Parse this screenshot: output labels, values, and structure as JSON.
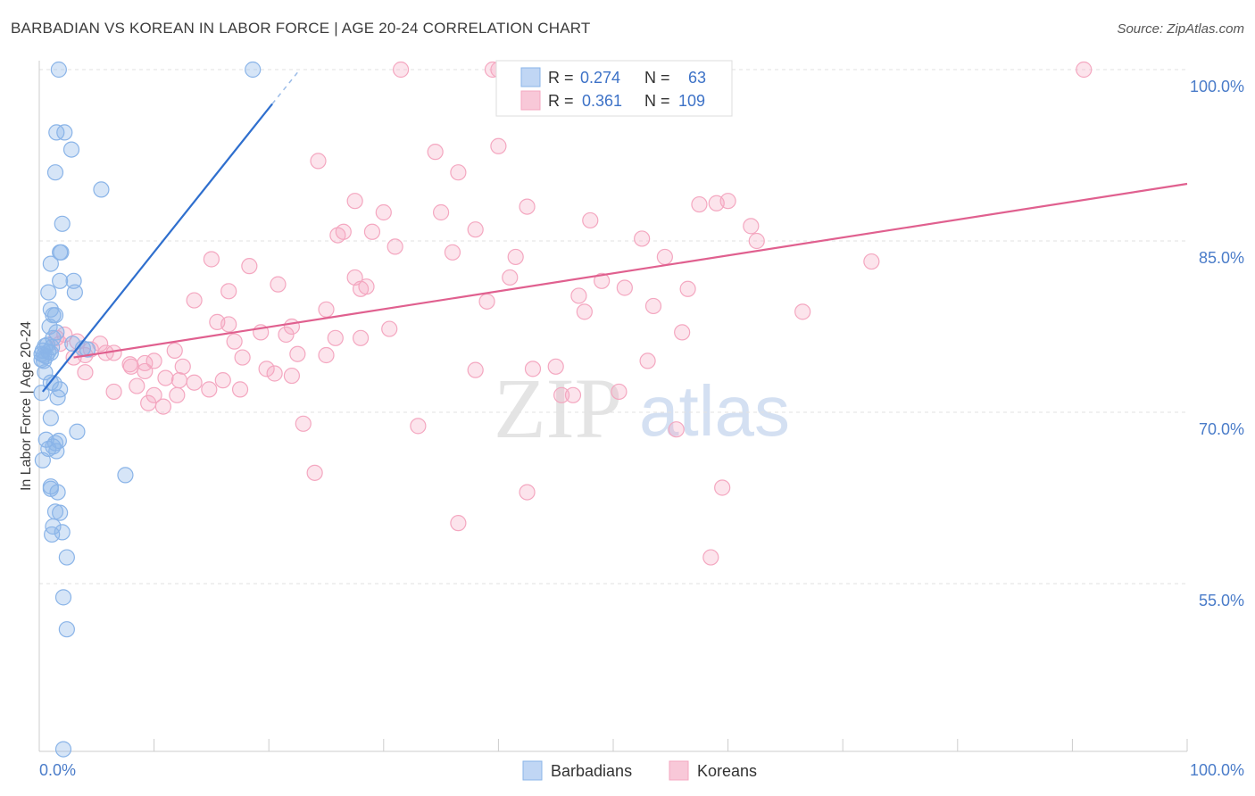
{
  "title": "BARBADIAN VS KOREAN IN LABOR FORCE | AGE 20-24 CORRELATION CHART",
  "source": "Source: ZipAtlas.com",
  "watermark": {
    "zip": "ZIP",
    "atlas": "atlas"
  },
  "chart_data": {
    "type": "scatter",
    "ylabel": "In Labor Force | Age 20-24",
    "xlabel": "",
    "xlim": [
      0,
      100
    ],
    "ylim": [
      40,
      102
    ],
    "x_tick_labels": [
      "0.0%",
      "100.0%"
    ],
    "y_ticks": [
      100,
      85,
      70,
      55
    ],
    "y_tick_labels": [
      "100.0%",
      "85.0%",
      "70.0%",
      "55.0%"
    ],
    "legend": {
      "placement": "top-center",
      "entries": [
        {
          "r_label": "R =",
          "r": "0.274",
          "n_label": "N =",
          "n": "63"
        },
        {
          "r_label": "R =",
          "r": "0.361",
          "n_label": "N =",
          "n": "109"
        }
      ]
    },
    "series": [
      {
        "name": "Barbadians",
        "color": "#8ab4e8",
        "line_color": "#2f6fce",
        "trend": {
          "x0": 0.3,
          "y0": 71.8,
          "x1": 20.3,
          "y1": 97.0,
          "dash_x1": 22.7,
          "dash_y1": 100.0
        },
        "points": [
          [
            1.7,
            100
          ],
          [
            18.6,
            100
          ],
          [
            1.5,
            94.5
          ],
          [
            2.2,
            94.5
          ],
          [
            2.8,
            93.0
          ],
          [
            1.4,
            91.0
          ],
          [
            5.4,
            89.5
          ],
          [
            2.0,
            86.5
          ],
          [
            1.8,
            84.0
          ],
          [
            1.9,
            84.0
          ],
          [
            1.0,
            83.0
          ],
          [
            1.8,
            81.5
          ],
          [
            3.0,
            81.5
          ],
          [
            3.1,
            80.5
          ],
          [
            0.8,
            80.5
          ],
          [
            1.0,
            79.0
          ],
          [
            1.2,
            78.5
          ],
          [
            1.4,
            78.5
          ],
          [
            0.9,
            77.5
          ],
          [
            1.5,
            77.0
          ],
          [
            1.2,
            76.5
          ],
          [
            2.9,
            76.0
          ],
          [
            0.5,
            75.8
          ],
          [
            1.1,
            75.7
          ],
          [
            4.2,
            75.5
          ],
          [
            0.3,
            75.4
          ],
          [
            0.8,
            75.3
          ],
          [
            1.0,
            75.2
          ],
          [
            0.2,
            75.1
          ],
          [
            0.4,
            75.0
          ],
          [
            0.6,
            74.9
          ],
          [
            0.2,
            74.6
          ],
          [
            0.4,
            74.5
          ],
          [
            3.8,
            75.6
          ],
          [
            0.5,
            73.5
          ],
          [
            1.0,
            72.6
          ],
          [
            1.3,
            72.5
          ],
          [
            1.8,
            72.0
          ],
          [
            0.2,
            71.7
          ],
          [
            1.6,
            71.3
          ],
          [
            1.0,
            69.5
          ],
          [
            3.3,
            68.3
          ],
          [
            0.6,
            67.6
          ],
          [
            1.7,
            67.5
          ],
          [
            1.4,
            67.3
          ],
          [
            1.2,
            67.0
          ],
          [
            0.8,
            66.8
          ],
          [
            1.5,
            66.6
          ],
          [
            0.3,
            65.8
          ],
          [
            7.5,
            64.5
          ],
          [
            1.0,
            63.5
          ],
          [
            1.0,
            63.3
          ],
          [
            1.6,
            63.0
          ],
          [
            1.4,
            61.3
          ],
          [
            1.8,
            61.2
          ],
          [
            1.2,
            60.0
          ],
          [
            1.1,
            59.3
          ],
          [
            2.0,
            59.5
          ],
          [
            2.4,
            57.3
          ],
          [
            2.1,
            53.8
          ],
          [
            2.4,
            51.0
          ],
          [
            2.1,
            40.5
          ],
          [
            0.7,
            75.9
          ]
        ]
      },
      {
        "name": "Koreans",
        "color": "#f4a7c0",
        "line_color": "#e0608f",
        "trend": {
          "x0": 3.0,
          "y0": 74.8,
          "x1": 100.0,
          "y1": 90.0
        },
        "points": [
          [
            31.5,
            100
          ],
          [
            39.5,
            100
          ],
          [
            40.0,
            100
          ],
          [
            40.5,
            100
          ],
          [
            41.0,
            100
          ],
          [
            91.0,
            100
          ],
          [
            40.0,
            93.3
          ],
          [
            34.5,
            92.8
          ],
          [
            24.3,
            92.0
          ],
          [
            36.5,
            91.0
          ],
          [
            27.5,
            88.5
          ],
          [
            42.5,
            88.0
          ],
          [
            57.5,
            88.2
          ],
          [
            59.0,
            88.3
          ],
          [
            60.0,
            88.5
          ],
          [
            30.0,
            87.5
          ],
          [
            35.0,
            87.5
          ],
          [
            48.0,
            86.8
          ],
          [
            62.0,
            86.3
          ],
          [
            38.0,
            86.0
          ],
          [
            29.0,
            85.8
          ],
          [
            26.5,
            85.8
          ],
          [
            26.0,
            85.5
          ],
          [
            52.5,
            85.2
          ],
          [
            31.0,
            84.5
          ],
          [
            62.5,
            85.0
          ],
          [
            36.0,
            84.0
          ],
          [
            41.5,
            83.6
          ],
          [
            54.5,
            83.6
          ],
          [
            15.0,
            83.4
          ],
          [
            72.5,
            83.2
          ],
          [
            18.3,
            82.8
          ],
          [
            27.5,
            81.8
          ],
          [
            41.0,
            81.8
          ],
          [
            49.0,
            81.5
          ],
          [
            20.8,
            81.2
          ],
          [
            28.5,
            81.0
          ],
          [
            51.0,
            80.9
          ],
          [
            28.0,
            80.8
          ],
          [
            56.5,
            80.8
          ],
          [
            16.5,
            80.6
          ],
          [
            47.0,
            80.2
          ],
          [
            13.5,
            79.8
          ],
          [
            39.0,
            79.7
          ],
          [
            53.5,
            79.3
          ],
          [
            25.0,
            79.0
          ],
          [
            47.5,
            78.8
          ],
          [
            66.5,
            78.8
          ],
          [
            15.5,
            77.9
          ],
          [
            16.5,
            77.7
          ],
          [
            22.0,
            77.5
          ],
          [
            30.5,
            77.3
          ],
          [
            19.3,
            77.0
          ],
          [
            21.5,
            76.8
          ],
          [
            56.0,
            77.0
          ],
          [
            25.8,
            76.5
          ],
          [
            28.0,
            76.5
          ],
          [
            17.0,
            76.2
          ],
          [
            1.5,
            76.5
          ],
          [
            2.2,
            76.8
          ],
          [
            1.8,
            76.0
          ],
          [
            3.3,
            76.2
          ],
          [
            5.3,
            76.0
          ],
          [
            4.5,
            75.5
          ],
          [
            11.8,
            75.4
          ],
          [
            6.5,
            75.2
          ],
          [
            5.8,
            75.2
          ],
          [
            4.0,
            75.0
          ],
          [
            3.0,
            74.8
          ],
          [
            22.5,
            75.1
          ],
          [
            25.0,
            75.0
          ],
          [
            17.7,
            74.8
          ],
          [
            10.0,
            74.5
          ],
          [
            9.2,
            74.3
          ],
          [
            7.9,
            74.2
          ],
          [
            12.5,
            74.0
          ],
          [
            8.0,
            74.0
          ],
          [
            19.8,
            73.8
          ],
          [
            38.0,
            73.7
          ],
          [
            43.0,
            73.8
          ],
          [
            45.0,
            74.0
          ],
          [
            53.0,
            74.5
          ],
          [
            4.0,
            73.5
          ],
          [
            9.2,
            73.6
          ],
          [
            20.5,
            73.4
          ],
          [
            22.0,
            73.2
          ],
          [
            11.0,
            73.0
          ],
          [
            12.2,
            72.8
          ],
          [
            13.5,
            72.6
          ],
          [
            16.0,
            72.8
          ],
          [
            8.5,
            72.3
          ],
          [
            14.8,
            72.0
          ],
          [
            17.5,
            72.0
          ],
          [
            6.5,
            71.8
          ],
          [
            10.0,
            71.5
          ],
          [
            12.0,
            71.5
          ],
          [
            45.5,
            71.5
          ],
          [
            46.5,
            71.5
          ],
          [
            50.5,
            71.8
          ],
          [
            9.5,
            70.8
          ],
          [
            10.8,
            70.5
          ],
          [
            23.0,
            69.0
          ],
          [
            33.0,
            68.8
          ],
          [
            55.5,
            68.5
          ],
          [
            24.0,
            64.7
          ],
          [
            42.5,
            63.0
          ],
          [
            59.5,
            63.4
          ],
          [
            36.5,
            60.3
          ],
          [
            58.5,
            57.3
          ]
        ]
      }
    ]
  }
}
